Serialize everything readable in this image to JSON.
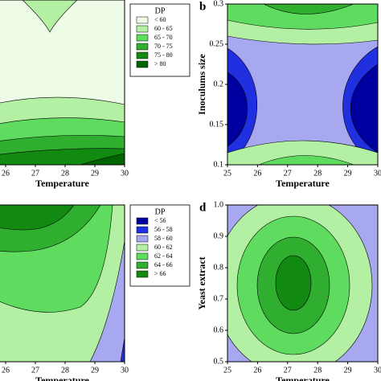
{
  "chart_data": [
    {
      "type": "contour",
      "xlabel": "Temperature",
      "xlim": [
        25,
        30
      ],
      "xticks": [
        26,
        27,
        28,
        29,
        30
      ],
      "legend": {
        "title": "DP",
        "labels": [
          "< 60",
          "60 - 65",
          "65 - 70",
          "70 - 75",
          "75 - 80",
          "> 80"
        ],
        "colors": [
          "#eefbe6",
          "#b4f0a4",
          "#5fdc5f",
          "#2fae2f",
          "#128a12",
          "#006400"
        ]
      }
    },
    {
      "type": "contour",
      "letter": "b",
      "xlabel": "Temperature",
      "ylabel": "Inoculums size",
      "xlim": [
        25,
        30
      ],
      "xticks": [
        25,
        26,
        27,
        28,
        29,
        30
      ],
      "ylim": [
        0.1,
        0.3
      ],
      "yticks": [
        0.1,
        0.15,
        0.2,
        0.25,
        0.3
      ],
      "colors": [
        "#0000a0",
        "#2030e0",
        "#a8a8f0",
        "#b4f0a4",
        "#5fdc5f",
        "#2fae2f",
        "#128a12"
      ]
    },
    {
      "type": "contour",
      "xlabel": "Temperature",
      "xlim": [
        25,
        30
      ],
      "xticks": [
        26,
        27,
        28,
        29,
        30
      ],
      "legend": {
        "title": "DP",
        "labels": [
          "< 56",
          "56 - 58",
          "58 - 60",
          "60 - 62",
          "62 - 64",
          "64 - 66",
          "> 66"
        ],
        "colors": [
          "#0000a0",
          "#2030e0",
          "#a8a8f0",
          "#b4f0a4",
          "#5fdc5f",
          "#2fae2f",
          "#128a12"
        ]
      }
    },
    {
      "type": "contour",
      "letter": "d",
      "xlabel": "Temperature",
      "ylabel": "Yeast extract",
      "xlim": [
        25,
        30
      ],
      "xticks": [
        25,
        26,
        27,
        28,
        29,
        30
      ],
      "ylim": [
        0.5,
        1
      ],
      "yticks": [
        0.5,
        0.6,
        0.7,
        0.8,
        0.9,
        {
          "value": 1,
          "label": "1.0"
        }
      ],
      "colors": [
        "#0000a0",
        "#2030e0",
        "#a8a8f0",
        "#b4f0a4",
        "#5fdc5f",
        "#2fae2f",
        "#128a12"
      ]
    }
  ]
}
